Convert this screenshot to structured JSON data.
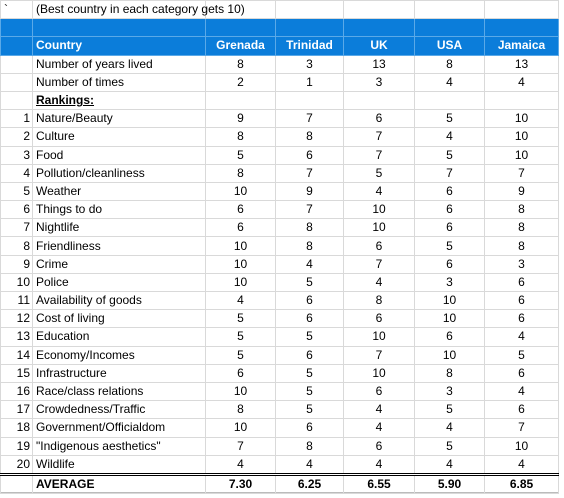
{
  "note_cell": "`",
  "caption": "(Best country in each category gets 10)",
  "table": {
    "header": [
      "Country",
      "Grenada",
      "Trinidad",
      "UK",
      "USA",
      "Jamaica"
    ],
    "stats": [
      {
        "label": "Number of years lived",
        "values": [
          8,
          3,
          13,
          8,
          13
        ]
      },
      {
        "label": "Number of times",
        "values": [
          2,
          1,
          3,
          4,
          4
        ]
      }
    ],
    "rankings_title": "Rankings:",
    "rankings": [
      {
        "rank": 1,
        "label": "Nature/Beauty",
        "values": [
          9,
          7,
          6,
          5,
          10
        ]
      },
      {
        "rank": 2,
        "label": "Culture",
        "values": [
          8,
          8,
          7,
          4,
          10
        ]
      },
      {
        "rank": 3,
        "label": "Food",
        "values": [
          5,
          6,
          7,
          5,
          10
        ]
      },
      {
        "rank": 4,
        "label": "Pollution/cleanliness",
        "values": [
          8,
          7,
          5,
          7,
          7
        ]
      },
      {
        "rank": 5,
        "label": "Weather",
        "values": [
          10,
          9,
          4,
          6,
          9
        ]
      },
      {
        "rank": 6,
        "label": "Things to do",
        "values": [
          6,
          7,
          10,
          6,
          8
        ]
      },
      {
        "rank": 7,
        "label": "Nightlife",
        "values": [
          6,
          8,
          10,
          6,
          8
        ]
      },
      {
        "rank": 8,
        "label": "Friendliness",
        "values": [
          10,
          8,
          6,
          5,
          8
        ]
      },
      {
        "rank": 9,
        "label": "Crime",
        "values": [
          10,
          4,
          7,
          6,
          3
        ]
      },
      {
        "rank": 10,
        "label": "Police",
        "values": [
          10,
          5,
          4,
          3,
          6
        ]
      },
      {
        "rank": 11,
        "label": "Availability of goods",
        "values": [
          4,
          6,
          8,
          10,
          6
        ]
      },
      {
        "rank": 12,
        "label": "Cost of living",
        "values": [
          5,
          6,
          6,
          10,
          6
        ]
      },
      {
        "rank": 13,
        "label": "Education",
        "values": [
          5,
          5,
          10,
          6,
          4
        ]
      },
      {
        "rank": 14,
        "label": "Economy/Incomes",
        "values": [
          5,
          6,
          7,
          10,
          5
        ]
      },
      {
        "rank": 15,
        "label": "Infrastructure",
        "values": [
          6,
          5,
          10,
          8,
          6
        ]
      },
      {
        "rank": 16,
        "label": "Race/class relations",
        "values": [
          10,
          5,
          6,
          3,
          4
        ]
      },
      {
        "rank": 17,
        "label": "Crowdedness/Traffic",
        "values": [
          8,
          5,
          4,
          5,
          6
        ]
      },
      {
        "rank": 18,
        "label": "Government/Officialdom",
        "values": [
          10,
          6,
          4,
          4,
          7
        ]
      },
      {
        "rank": 19,
        "label": "\"Indigenous aesthetics\"",
        "values": [
          7,
          8,
          6,
          5,
          10
        ]
      },
      {
        "rank": 20,
        "label": "Wildlife",
        "values": [
          4,
          4,
          4,
          4,
          4
        ]
      }
    ],
    "average": {
      "label": "AVERAGE",
      "values": [
        "7.30",
        "6.25",
        "6.55",
        "5.90",
        "6.85"
      ]
    }
  }
}
